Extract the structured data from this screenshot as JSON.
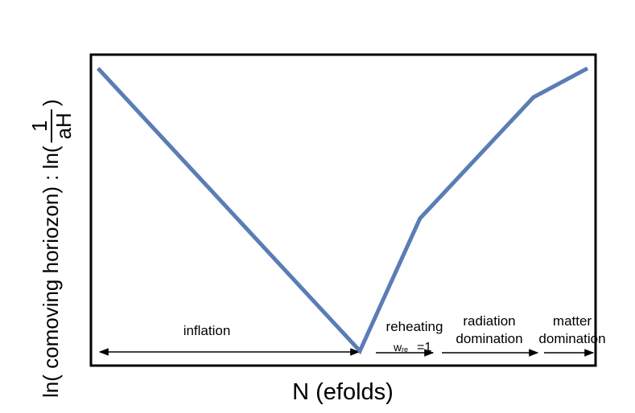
{
  "chart_data": {
    "type": "line",
    "x_label": "N (efolds)",
    "y_label": {
      "prefix": "ln( comoving horiozon) :  ln(",
      "numerator": "1",
      "denominator": "aH",
      "suffix": ")"
    },
    "x": [
      1.4,
      53.3,
      65.2,
      87.7,
      98.4
    ],
    "y": [
      95.6,
      4.7,
      47.3,
      86.3,
      95.6
    ],
    "xlim": [
      0,
      100
    ],
    "ylim": [
      0,
      100
    ],
    "color": "#5b7db6",
    "annotations": {
      "inflation": "inflation",
      "reheating": "reheating",
      "w": "w",
      "w_sub": "re",
      "w_eq": "=1",
      "radiation": [
        "radiation",
        "domination"
      ],
      "matter": [
        "matter",
        "domination"
      ]
    }
  }
}
